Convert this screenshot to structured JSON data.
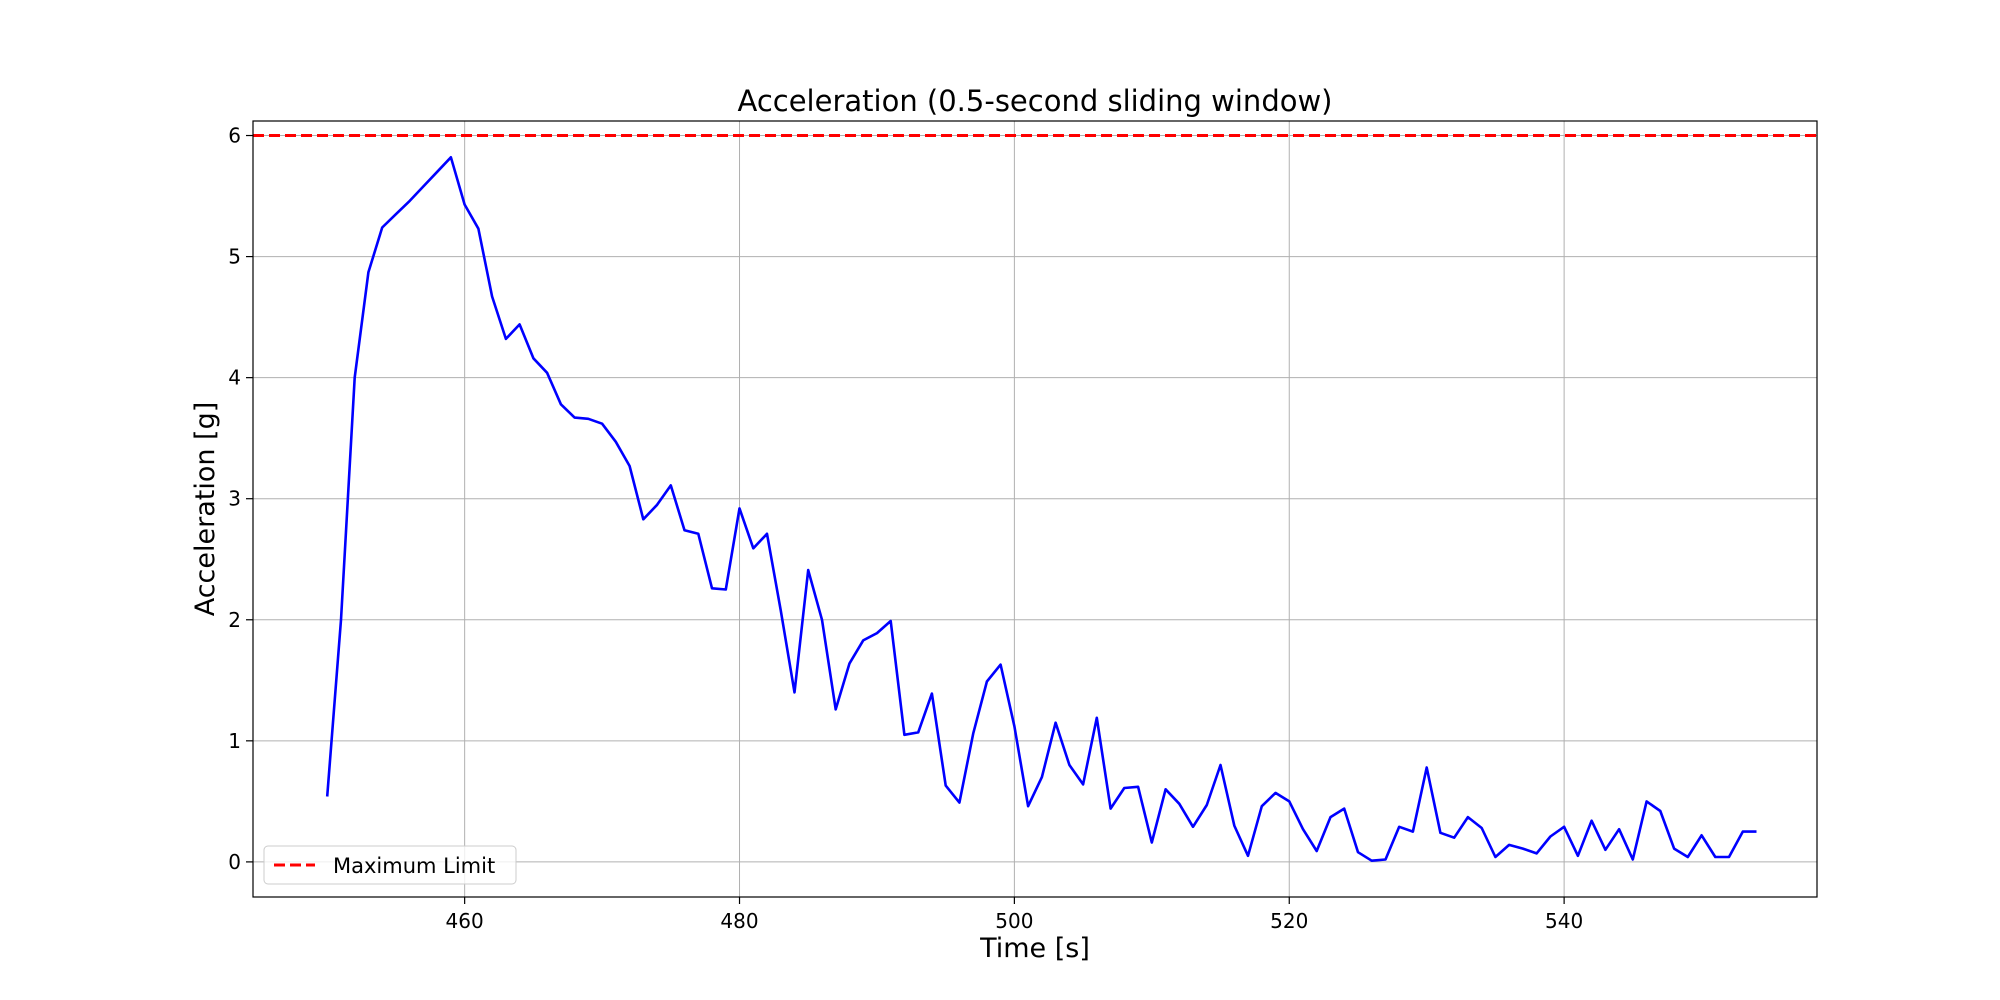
{
  "chart_data": {
    "type": "line",
    "title": "Acceleration (0.5-second sliding window)",
    "xlabel": "Time [s]",
    "ylabel": "Acceleration [g]",
    "xlim": [
      444.6,
      558.4
    ],
    "ylim": [
      -0.29,
      6.12
    ],
    "xticks": [
      460,
      480,
      500,
      520,
      540
    ],
    "yticks": [
      0,
      1,
      2,
      3,
      4,
      5,
      6
    ],
    "grid": true,
    "legend_position": "bottom-left",
    "reference_lines": [
      {
        "name": "Maximum Limit",
        "y": 6,
        "color": "#ff0000",
        "style": "dashed"
      }
    ],
    "series": [
      {
        "color": "#0000ff",
        "x": [
          450,
          451,
          452,
          453,
          454,
          455,
          456,
          457,
          458,
          459,
          460,
          461,
          462,
          463,
          464,
          465,
          466,
          467,
          468,
          469,
          470,
          471,
          472,
          473,
          474,
          475,
          476,
          477,
          478,
          479,
          480,
          481,
          482,
          483,
          484,
          485,
          486,
          487,
          488,
          489,
          490,
          491,
          492,
          493,
          494,
          495,
          496,
          497,
          498,
          499,
          500,
          501,
          502,
          503,
          504,
          505,
          506,
          507,
          508,
          509,
          510,
          511,
          512,
          513,
          514,
          515,
          516,
          517,
          518,
          519,
          520,
          521,
          522,
          523,
          524,
          525,
          526,
          527,
          528,
          529,
          530,
          531,
          532,
          533,
          534,
          535,
          536,
          537,
          538,
          539,
          540,
          541,
          542,
          543,
          544,
          545,
          546,
          547,
          548,
          549,
          550,
          551,
          552,
          553,
          554
        ],
        "y": [
          0.54,
          2.0,
          4.0,
          4.87,
          5.24,
          5.35,
          5.46,
          5.58,
          5.7,
          5.82,
          5.43,
          5.23,
          4.67,
          4.32,
          4.44,
          4.16,
          4.04,
          3.78,
          3.67,
          3.66,
          3.62,
          3.47,
          3.27,
          2.83,
          2.95,
          3.11,
          2.74,
          2.71,
          2.26,
          2.25,
          2.92,
          2.59,
          2.71,
          2.08,
          1.4,
          2.41,
          2.0,
          1.26,
          1.64,
          1.83,
          1.89,
          1.99,
          1.05,
          1.07,
          1.39,
          0.63,
          0.49,
          1.06,
          1.49,
          1.63,
          1.12,
          0.46,
          0.7,
          1.15,
          0.8,
          0.64,
          1.19,
          0.44,
          0.61,
          0.62,
          0.16,
          0.6,
          0.48,
          0.29,
          0.47,
          0.8,
          0.3,
          0.05,
          0.46,
          0.57,
          0.5,
          0.27,
          0.09,
          0.37,
          0.44,
          0.08,
          0.01,
          0.02,
          0.29,
          0.25,
          0.78,
          0.24,
          0.2,
          0.37,
          0.28,
          0.04,
          0.14,
          0.11,
          0.07,
          0.21,
          0.29,
          0.05,
          0.34,
          0.1,
          0.27,
          0.02,
          0.5,
          0.42,
          0.11,
          0.04,
          0.22,
          0.04,
          0.04,
          0.25,
          0.25
        ]
      }
    ]
  }
}
